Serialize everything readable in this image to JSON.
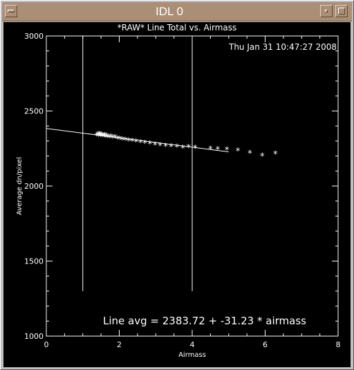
{
  "window": {
    "title": "IDL 0",
    "icons": [
      "window-menu-icon",
      "minimize-icon",
      "maximize-icon"
    ]
  },
  "colors": {
    "background": "#000000",
    "foreground": "#ffffff",
    "titlebar": "#ab8e76",
    "frame": "#c2bfc2"
  },
  "chart_data": {
    "type": "scatter",
    "title": "*RAW* Line Total vs. Airmass",
    "timestamp": "Thu Jan 31 10:47:27 2008",
    "xlabel": "Airmass",
    "ylabel": "Average dn/pixel",
    "xlim": [
      0,
      8
    ],
    "ylim": [
      1000,
      3000
    ],
    "xticks": [
      "0",
      "2",
      "4",
      "6",
      "8"
    ],
    "yticks": [
      "1000",
      "1500",
      "2000",
      "2500",
      "3000"
    ],
    "grid": false,
    "vertical_lines": [
      1.0,
      4.0
    ],
    "fit": {
      "label": "Line avg = 2383.72 + -31.23 * airmass",
      "intercept": 2383.72,
      "slope": -31.23,
      "x_range": [
        0,
        5.0
      ]
    },
    "series": [
      {
        "marker": "*",
        "points": [
          [
            1.38,
            2342
          ],
          [
            1.41,
            2348
          ],
          [
            1.43,
            2337
          ],
          [
            1.45,
            2344
          ],
          [
            1.47,
            2350
          ],
          [
            1.49,
            2339
          ],
          [
            1.51,
            2346
          ],
          [
            1.53,
            2333
          ],
          [
            1.55,
            2341
          ],
          [
            1.58,
            2337
          ],
          [
            1.61,
            2343
          ],
          [
            1.63,
            2329
          ],
          [
            1.66,
            2336
          ],
          [
            1.69,
            2332
          ],
          [
            1.73,
            2327
          ],
          [
            1.77,
            2333
          ],
          [
            1.82,
            2325
          ],
          [
            1.88,
            2329
          ],
          [
            1.94,
            2320
          ],
          [
            2.01,
            2318
          ],
          [
            2.08,
            2314
          ],
          [
            2.16,
            2311
          ],
          [
            2.25,
            2307
          ],
          [
            2.35,
            2303
          ],
          [
            2.46,
            2299
          ],
          [
            2.58,
            2294
          ],
          [
            2.7,
            2290
          ],
          [
            2.84,
            2286
          ],
          [
            2.98,
            2279
          ],
          [
            3.12,
            2274
          ],
          [
            3.27,
            2270
          ],
          [
            3.42,
            2268
          ],
          [
            3.58,
            2264
          ],
          [
            3.74,
            2259
          ],
          [
            3.9,
            2262
          ],
          [
            4.08,
            2257
          ],
          [
            4.5,
            2251
          ],
          [
            4.7,
            2250
          ],
          [
            4.95,
            2246
          ],
          [
            5.25,
            2239
          ],
          [
            5.58,
            2224
          ],
          [
            5.92,
            2204
          ],
          [
            6.28,
            2219
          ]
        ]
      }
    ]
  }
}
